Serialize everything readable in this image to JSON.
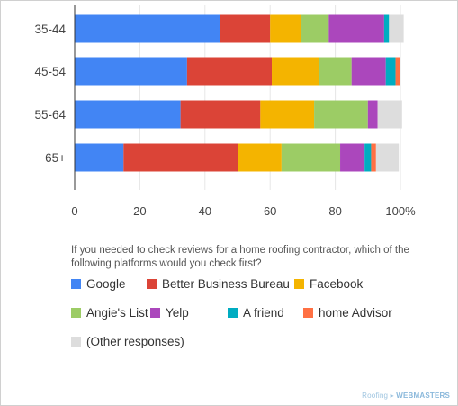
{
  "chart_data": {
    "type": "bar",
    "orientation": "horizontal",
    "stacked": true,
    "categories": [
      "35-44",
      "45-54",
      "55-64",
      "65+"
    ],
    "series": [
      {
        "name": "Google",
        "color": "#4285f4",
        "values": [
          44.5,
          34.5,
          32.5,
          15
        ]
      },
      {
        "name": "Better Business Bureau",
        "color": "#db4437",
        "values": [
          15.5,
          26,
          24.5,
          35
        ]
      },
      {
        "name": "Facebook",
        "color": "#f4b400",
        "values": [
          9.5,
          14.5,
          16.5,
          13.5
        ]
      },
      {
        "name": "Angie's List",
        "color": "#9ccc65",
        "values": [
          8.5,
          10,
          16.5,
          18
        ]
      },
      {
        "name": "Yelp",
        "color": "#ab47bc",
        "values": [
          17,
          10.5,
          3,
          7.5
        ]
      },
      {
        "name": "A friend",
        "color": "#00acc1",
        "values": [
          1.5,
          3,
          0,
          2
        ]
      },
      {
        "name": "home Advisor",
        "color": "#ff7043",
        "values": [
          0,
          1.5,
          0,
          1.5
        ]
      },
      {
        "name": "(Other responses)",
        "color": "#dddddd",
        "values": [
          4.5,
          0,
          7.5,
          7
        ]
      }
    ],
    "xlim": [
      0,
      100
    ],
    "xticks": [
      "0",
      "20",
      "40",
      "60",
      "80",
      "100%"
    ],
    "question": "If you needed to check reviews for a home roofing contractor, which of the following platforms would you check first?",
    "legend_position": "bottom"
  },
  "brand": {
    "prefix": "Roofing",
    "bold": "WEBMASTERS"
  }
}
